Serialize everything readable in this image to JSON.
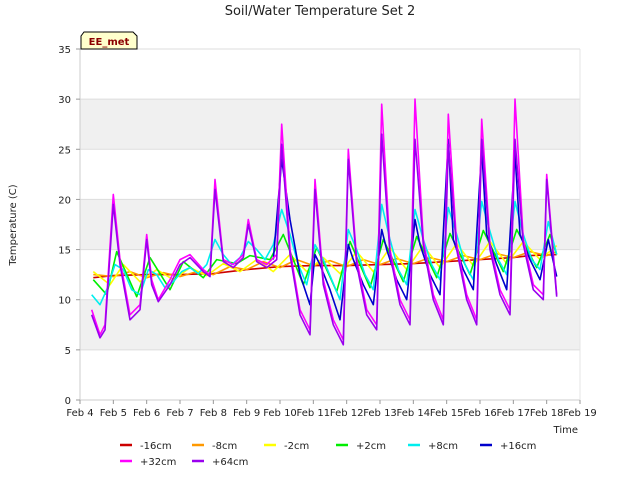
{
  "chart_data": {
    "type": "line",
    "title": "Soil/Water Temperature Set 2",
    "xlabel": "Time",
    "ylabel": "Temperature (C)",
    "badge": "EE_met",
    "xlim": [
      4,
      19
    ],
    "ylim": [
      0,
      35
    ],
    "x_ticks": [
      {
        "v": 4,
        "label": "Feb 4"
      },
      {
        "v": 5,
        "label": "Feb 5"
      },
      {
        "v": 6,
        "label": "Feb 6"
      },
      {
        "v": 7,
        "label": "Feb 7"
      },
      {
        "v": 8,
        "label": "Feb 8"
      },
      {
        "v": 9,
        "label": "Feb 9"
      },
      {
        "v": 10,
        "label": "Feb 10"
      },
      {
        "v": 11,
        "label": "Feb 11"
      },
      {
        "v": 12,
        "label": "Feb 12"
      },
      {
        "v": 13,
        "label": "Feb 13"
      },
      {
        "v": 14,
        "label": "Feb 14"
      },
      {
        "v": 15,
        "label": "Feb 15"
      },
      {
        "v": 16,
        "label": "Feb 16"
      },
      {
        "v": 17,
        "label": "Feb 17"
      },
      {
        "v": 18,
        "label": "Feb 18"
      },
      {
        "v": 19,
        "label": "Feb 19"
      }
    ],
    "y_ticks": [
      0,
      5,
      10,
      15,
      20,
      25,
      30,
      35
    ],
    "series": [
      {
        "name": "-16cm",
        "color": "#cc0000",
        "x": [
          4.4,
          5,
          6,
          7,
          8,
          9,
          10,
          11,
          12,
          13,
          14,
          15,
          16,
          17,
          17.5,
          18.3
        ],
        "y": [
          12.2,
          12.4,
          12.5,
          12.5,
          12.6,
          13.0,
          13.3,
          13.4,
          13.4,
          13.5,
          13.6,
          13.8,
          14.0,
          14.2,
          14.4,
          14.5
        ]
      },
      {
        "name": "-8cm",
        "color": "#ff9900",
        "x": [
          4.4,
          5,
          5.5,
          6,
          6.5,
          7,
          7.5,
          8,
          8.5,
          9,
          9.5,
          10,
          10.5,
          11,
          11.5,
          12,
          12.5,
          13,
          13.5,
          14,
          14.5,
          15,
          15.5,
          16,
          16.5,
          17,
          17.5,
          18,
          18.3
        ],
        "y": [
          12.5,
          12.3,
          12.8,
          12.2,
          12.7,
          12.3,
          12.8,
          12.5,
          13.3,
          13.0,
          13.8,
          13.2,
          14.0,
          13.4,
          13.9,
          13.3,
          14.0,
          13.5,
          14.1,
          13.6,
          14.2,
          13.8,
          14.4,
          14.0,
          14.6,
          14.2,
          14.8,
          14.4,
          14.8
        ]
      },
      {
        "name": "-2cm",
        "color": "#ffff00",
        "x": [
          4.4,
          4.9,
          5.3,
          5.8,
          6.3,
          6.8,
          7.3,
          7.8,
          8.3,
          8.8,
          9.3,
          9.8,
          10.3,
          10.8,
          11.3,
          11.8,
          12.3,
          12.8,
          13.3,
          13.8,
          14.3,
          14.8,
          15.3,
          15.8,
          16.3,
          16.8,
          17.3,
          17.8,
          18.3
        ],
        "y": [
          12.8,
          11.5,
          13.5,
          11.8,
          13.0,
          12.0,
          13.2,
          12.4,
          13.6,
          12.8,
          14.0,
          12.8,
          14.5,
          12.8,
          14.2,
          12.6,
          14.8,
          12.8,
          15.2,
          13.0,
          15.4,
          13.2,
          15.6,
          13.4,
          15.8,
          13.6,
          15.8,
          14.0,
          15.4
        ]
      },
      {
        "name": "+2cm",
        "color": "#00ee00",
        "x": [
          4.4,
          4.8,
          5.1,
          5.7,
          6.1,
          6.7,
          7.1,
          7.7,
          8.1,
          8.7,
          9.1,
          9.7,
          10.1,
          10.7,
          11.1,
          11.7,
          12.1,
          12.7,
          13.1,
          13.7,
          14.1,
          14.7,
          15.1,
          15.7,
          16.1,
          16.7,
          17.1,
          17.7,
          18.1,
          18.3
        ],
        "y": [
          12.0,
          10.5,
          14.8,
          10.3,
          14.2,
          11.0,
          13.8,
          12.2,
          14.0,
          13.6,
          14.4,
          14.0,
          16.5,
          11.5,
          15.2,
          10.8,
          15.8,
          11.2,
          16.0,
          11.8,
          16.3,
          12.2,
          16.6,
          12.5,
          16.9,
          12.8,
          17.0,
          13.2,
          16.5,
          14.5
        ]
      },
      {
        "name": "+8cm",
        "color": "#00eeee",
        "x": [
          4.35,
          4.6,
          4.8,
          5.05,
          5.3,
          5.55,
          5.8,
          6.05,
          6.3,
          6.55,
          6.8,
          7.05,
          7.3,
          7.55,
          7.8,
          8.05,
          8.3,
          8.55,
          8.8,
          9.05,
          9.3,
          9.55,
          9.8,
          10.05,
          10.3,
          10.55,
          10.8,
          11.05,
          11.3,
          11.55,
          11.8,
          12.05,
          12.3,
          12.55,
          12.8,
          13.05,
          13.3,
          13.55,
          13.8,
          14.05,
          14.3,
          14.55,
          14.8,
          15.05,
          15.3,
          15.55,
          15.8,
          16.05,
          16.3,
          16.55,
          16.8,
          17.05,
          17.3,
          17.55,
          17.8,
          18.05,
          18.3
        ],
        "y": [
          10.5,
          9.5,
          11.0,
          13.5,
          13.0,
          11.0,
          10.5,
          13.0,
          12.5,
          11.2,
          11.8,
          12.8,
          13.2,
          12.6,
          13.5,
          16.0,
          14.5,
          13.5,
          14.2,
          15.8,
          15.0,
          14.0,
          15.5,
          19.0,
          16.5,
          13.5,
          11.5,
          15.5,
          14.0,
          12.0,
          10.0,
          17.0,
          15.0,
          12.5,
          11.0,
          19.5,
          16.0,
          13.0,
          11.5,
          19.0,
          16.0,
          13.5,
          12.0,
          19.2,
          16.5,
          13.5,
          12.0,
          19.8,
          16.8,
          14.0,
          12.5,
          19.8,
          16.5,
          14.0,
          13.0,
          17.8,
          14.5
        ]
      },
      {
        "name": "+16cm",
        "color": "#0000cc",
        "x": [
          9.8,
          10.05,
          10.3,
          10.6,
          10.9,
          11.05,
          11.2,
          11.5,
          11.8,
          12.05,
          12.2,
          12.5,
          12.8,
          13.05,
          13.2,
          13.5,
          13.8,
          14.05,
          14.2,
          14.5,
          14.8,
          15.05,
          15.2,
          15.5,
          15.8,
          16.05,
          16.2,
          16.5,
          16.8,
          17.05,
          17.2,
          17.5,
          17.8,
          18.05,
          18.3
        ],
        "y": [
          14.0,
          24.0,
          18.0,
          12.5,
          9.5,
          14.5,
          13.5,
          11.0,
          8.0,
          15.5,
          14.0,
          11.5,
          9.5,
          17.0,
          15.0,
          12.0,
          10.0,
          18.0,
          15.5,
          12.5,
          10.5,
          26.0,
          16.0,
          13.0,
          11.0,
          25.0,
          16.5,
          13.5,
          11.0,
          24.5,
          16.5,
          14.0,
          12.0,
          16.0,
          12.3
        ]
      },
      {
        "name": "+32cm",
        "color": "#ff00ff",
        "x": [
          4.35,
          4.6,
          4.75,
          5.0,
          5.2,
          5.5,
          5.8,
          6.0,
          6.15,
          6.35,
          6.7,
          7.0,
          7.3,
          7.7,
          7.9,
          8.05,
          8.3,
          8.6,
          8.9,
          9.05,
          9.3,
          9.6,
          9.9,
          10.05,
          10.3,
          10.6,
          10.9,
          11.05,
          11.3,
          11.6,
          11.9,
          12.05,
          12.3,
          12.6,
          12.9,
          13.05,
          13.3,
          13.6,
          13.9,
          14.05,
          14.3,
          14.6,
          14.9,
          15.05,
          15.3,
          15.6,
          15.9,
          16.05,
          16.3,
          16.6,
          16.9,
          17.05,
          17.3,
          17.6,
          17.9,
          18.0,
          18.3
        ],
        "y": [
          9.0,
          6.5,
          7.5,
          20.5,
          14.0,
          8.5,
          9.5,
          16.5,
          12.0,
          10.0,
          12.0,
          14.0,
          14.5,
          13.0,
          12.5,
          22.0,
          14.0,
          13.5,
          14.5,
          18.0,
          14.0,
          13.5,
          14.5,
          27.5,
          15.0,
          9.0,
          7.0,
          22.0,
          12.0,
          8.0,
          6.0,
          25.0,
          14.0,
          9.0,
          7.5,
          29.5,
          15.0,
          10.0,
          8.0,
          30.0,
          16.0,
          10.5,
          8.0,
          28.5,
          15.5,
          10.5,
          8.0,
          28.0,
          15.5,
          11.0,
          9.0,
          30.0,
          16.0,
          11.5,
          10.5,
          22.5,
          10.5
        ]
      },
      {
        "name": "+64cm",
        "color": "#9900ee",
        "x": [
          4.35,
          4.6,
          4.75,
          5.0,
          5.2,
          5.5,
          5.8,
          6.0,
          6.15,
          6.35,
          6.7,
          7.0,
          7.3,
          7.7,
          7.9,
          8.05,
          8.3,
          8.6,
          8.9,
          9.05,
          9.3,
          9.6,
          9.9,
          10.05,
          10.3,
          10.6,
          10.9,
          11.05,
          11.3,
          11.6,
          11.9,
          12.05,
          12.3,
          12.6,
          12.9,
          13.05,
          13.3,
          13.6,
          13.9,
          14.05,
          14.3,
          14.6,
          14.9,
          15.05,
          15.3,
          15.6,
          15.9,
          16.05,
          16.3,
          16.6,
          16.9,
          17.05,
          17.3,
          17.6,
          17.9,
          18.0,
          18.3
        ],
        "y": [
          8.5,
          6.2,
          7.0,
          19.5,
          13.5,
          8.0,
          9.0,
          16.0,
          11.5,
          9.8,
          11.5,
          13.5,
          14.2,
          12.8,
          12.3,
          21.0,
          13.8,
          13.2,
          14.2,
          17.5,
          13.8,
          13.2,
          14.0,
          25.5,
          14.5,
          8.5,
          6.5,
          21.0,
          11.5,
          7.5,
          5.5,
          24.0,
          13.5,
          8.5,
          7.0,
          26.5,
          14.5,
          9.5,
          7.5,
          26.0,
          15.5,
          10.0,
          7.5,
          25.5,
          15.0,
          10.0,
          7.5,
          26.0,
          15.0,
          10.5,
          8.5,
          26.0,
          15.5,
          11.0,
          10.0,
          22.0,
          10.3
        ]
      }
    ]
  }
}
